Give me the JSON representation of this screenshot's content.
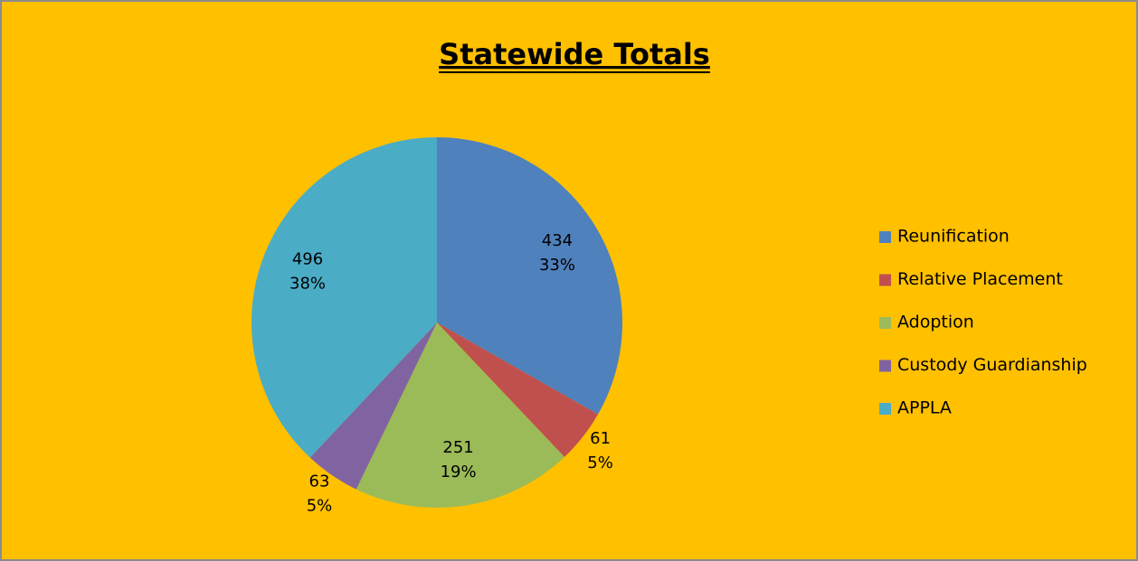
{
  "chart_data": {
    "type": "pie",
    "title": "Statewide Totals",
    "categories": [
      "Reunification",
      "Relative Placement",
      "Adoption",
      "Custody Guardianship",
      "APPLA"
    ],
    "values": [
      434,
      61,
      251,
      63,
      496
    ],
    "percentages": [
      33,
      5,
      19,
      5,
      38
    ],
    "percentage_labels": [
      "33%",
      "5%",
      "19%",
      "5%",
      "38%"
    ],
    "colors": [
      "#4F81BD",
      "#C0504D",
      "#9BBB59",
      "#8064A2",
      "#4BACC6"
    ],
    "legend": "right"
  }
}
